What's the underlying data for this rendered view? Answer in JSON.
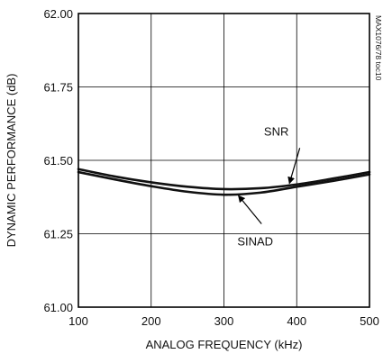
{
  "chart_data": {
    "type": "line",
    "x_label": "ANALOG FREQUENCY (kHz)",
    "y_label": "DYNAMIC PERFORMANCE (dB)",
    "x_range": [
      100,
      500
    ],
    "y_range": [
      61.0,
      62.0
    ],
    "x_ticks": [
      100,
      200,
      300,
      400,
      500
    ],
    "x_tick_labels": [
      "100",
      "200",
      "300",
      "400",
      "500"
    ],
    "y_ticks": [
      61.0,
      61.25,
      61.5,
      61.75,
      62.0
    ],
    "y_tick_labels": [
      "61.00",
      "61.25",
      "61.50",
      "61.75",
      "62.00"
    ],
    "grid": true,
    "part_code": "MAX1076/78 toc10",
    "series": [
      {
        "name": "SNR",
        "x": [
          100,
          150,
          200,
          250,
          300,
          350,
          400,
          450,
          500
        ],
        "y": [
          61.47,
          61.445,
          61.425,
          61.41,
          61.402,
          61.405,
          61.418,
          61.438,
          61.46
        ]
      },
      {
        "name": "SINAD",
        "x": [
          100,
          150,
          200,
          250,
          300,
          350,
          400,
          450,
          500
        ],
        "y": [
          61.46,
          61.435,
          61.412,
          61.393,
          61.383,
          61.39,
          61.41,
          61.43,
          61.452
        ]
      }
    ],
    "annotations": [
      {
        "text": "SNR",
        "series": "SNR",
        "at_x": 390
      },
      {
        "text": "SINAD",
        "series": "SINAD",
        "at_x": 320
      }
    ]
  }
}
